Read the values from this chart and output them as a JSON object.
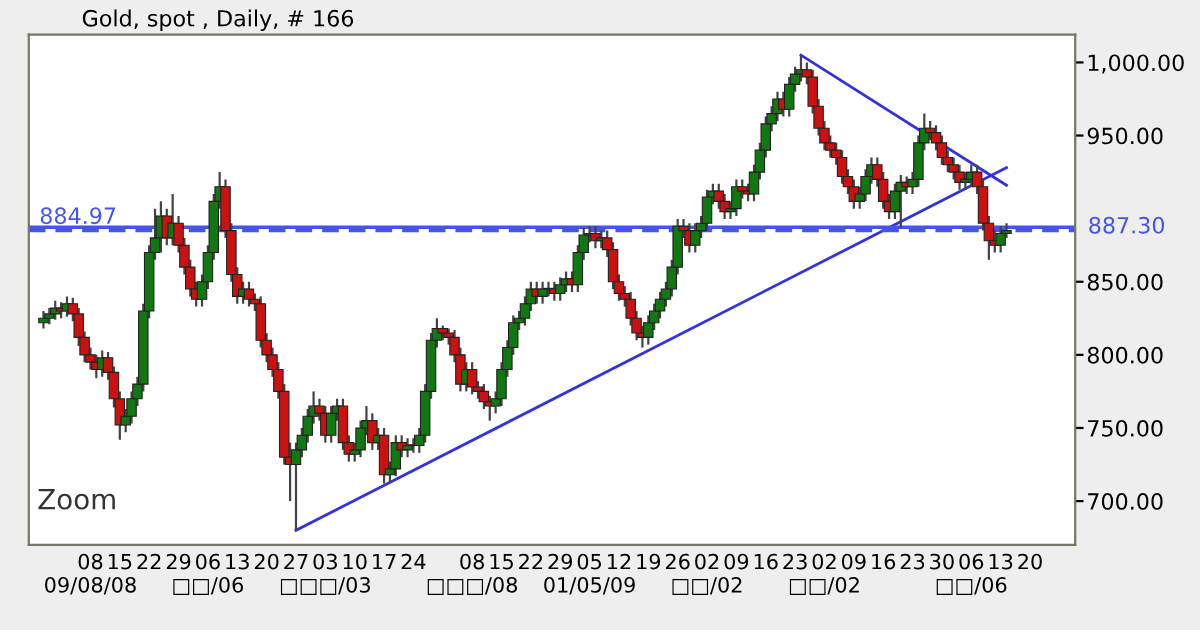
{
  "chart_data": {
    "type": "candlestick",
    "title": "Gold, spot , Daily, # 166",
    "annotations": [
      "Zoom"
    ],
    "categories": [
      null,
      null,
      null,
      null,
      null,
      null,
      null,
      null,
      "08\n09/08/08",
      null,
      null,
      null,
      null,
      "15",
      null,
      null,
      null,
      null,
      "22",
      null,
      null,
      null,
      null,
      "29",
      null,
      null,
      null,
      null,
      "06\n□□/06",
      null,
      null,
      null,
      null,
      "13",
      null,
      null,
      null,
      null,
      "20",
      null,
      null,
      null,
      null,
      "27",
      null,
      null,
      null,
      null,
      "03\n□□□/03",
      null,
      null,
      null,
      null,
      "10",
      null,
      null,
      null,
      null,
      "17",
      null,
      null,
      null,
      null,
      "24",
      null,
      null,
      null,
      null,
      null,
      null,
      null,
      null,
      null,
      "08\n□□□/08",
      null,
      null,
      null,
      null,
      "15",
      null,
      null,
      null,
      null,
      "22",
      null,
      null,
      null,
      null,
      "29",
      null,
      null,
      null,
      null,
      "05\n01/05/09",
      null,
      null,
      null,
      null,
      "12",
      null,
      null,
      null,
      null,
      "19",
      null,
      null,
      null,
      null,
      "26",
      null,
      null,
      null,
      null,
      "02\n□□/02",
      null,
      null,
      null,
      null,
      "09",
      null,
      null,
      null,
      null,
      "16",
      null,
      null,
      null,
      null,
      "23",
      null,
      null,
      null,
      null,
      "02\n□□/02",
      null,
      null,
      null,
      null,
      "09",
      null,
      null,
      null,
      null,
      "16",
      null,
      null,
      null,
      null,
      "23",
      null,
      null,
      null,
      null,
      "30",
      null,
      null,
      null,
      null,
      "06\n□□/06",
      null,
      null,
      null,
      null,
      "13",
      null,
      null,
      null,
      null,
      "20",
      null
    ],
    "ohlc": [
      [
        822,
        830,
        818,
        825
      ],
      [
        825,
        832,
        821,
        828
      ],
      [
        828,
        837,
        824,
        832
      ],
      [
        832,
        836,
        825,
        830
      ],
      [
        830,
        840,
        826,
        835
      ],
      [
        835,
        839,
        823,
        828
      ],
      [
        828,
        832,
        806,
        812
      ],
      [
        812,
        816,
        795,
        800
      ],
      [
        800,
        805,
        790,
        795
      ],
      [
        795,
        800,
        784,
        790
      ],
      [
        790,
        803,
        785,
        798
      ],
      [
        798,
        802,
        783,
        788
      ],
      [
        788,
        792,
        764,
        770
      ],
      [
        770,
        775,
        742,
        752
      ],
      [
        752,
        763,
        747,
        758
      ],
      [
        758,
        775,
        753,
        770
      ],
      [
        770,
        785,
        765,
        780
      ],
      [
        780,
        835,
        775,
        830
      ],
      [
        830,
        875,
        825,
        870
      ],
      [
        870,
        900,
        865,
        880
      ],
      [
        880,
        905,
        870,
        895
      ],
      [
        895,
        900,
        875,
        880
      ],
      [
        880,
        910,
        875,
        890
      ],
      [
        890,
        895,
        870,
        875
      ],
      [
        875,
        880,
        855,
        860
      ],
      [
        860,
        865,
        840,
        845
      ],
      [
        845,
        850,
        833,
        838
      ],
      [
        838,
        855,
        833,
        850
      ],
      [
        850,
        875,
        845,
        870
      ],
      [
        870,
        910,
        865,
        905
      ],
      [
        905,
        925,
        900,
        915
      ],
      [
        915,
        920,
        880,
        885
      ],
      [
        885,
        890,
        850,
        855
      ],
      [
        855,
        860,
        835,
        840
      ],
      [
        840,
        850,
        835,
        845
      ],
      [
        845,
        850,
        833,
        838
      ],
      [
        838,
        842,
        830,
        835
      ],
      [
        835,
        840,
        805,
        810
      ],
      [
        810,
        815,
        795,
        800
      ],
      [
        800,
        805,
        785,
        790
      ],
      [
        790,
        795,
        770,
        775
      ],
      [
        775,
        780,
        725,
        730
      ],
      [
        730,
        740,
        700,
        725
      ],
      [
        725,
        740,
        680,
        735
      ],
      [
        735,
        750,
        730,
        745
      ],
      [
        745,
        763,
        740,
        758
      ],
      [
        758,
        775,
        753,
        765
      ],
      [
        765,
        770,
        755,
        760
      ],
      [
        760,
        765,
        740,
        745
      ],
      [
        745,
        765,
        740,
        760
      ],
      [
        760,
        770,
        755,
        765
      ],
      [
        765,
        770,
        735,
        740
      ],
      [
        740,
        745,
        727,
        732
      ],
      [
        732,
        740,
        727,
        735
      ],
      [
        735,
        755,
        730,
        750
      ],
      [
        750,
        765,
        745,
        755
      ],
      [
        755,
        760,
        735,
        740
      ],
      [
        740,
        750,
        735,
        745
      ],
      [
        745,
        750,
        712,
        718
      ],
      [
        718,
        727,
        713,
        722
      ],
      [
        722,
        745,
        717,
        740
      ],
      [
        740,
        745,
        730,
        735
      ],
      [
        735,
        743,
        730,
        738
      ],
      [
        738,
        743,
        733,
        738
      ],
      [
        738,
        750,
        733,
        745
      ],
      [
        745,
        780,
        740,
        775
      ],
      [
        775,
        815,
        770,
        810
      ],
      [
        810,
        825,
        805,
        818
      ],
      [
        818,
        820,
        810,
        815
      ],
      [
        815,
        818,
        807,
        812
      ],
      [
        812,
        817,
        795,
        800
      ],
      [
        800,
        805,
        775,
        780
      ],
      [
        780,
        795,
        775,
        790
      ],
      [
        790,
        795,
        773,
        778
      ],
      [
        778,
        782,
        770,
        775
      ],
      [
        775,
        780,
        763,
        768
      ],
      [
        768,
        772,
        755,
        765
      ],
      [
        765,
        775,
        760,
        770
      ],
      [
        770,
        795,
        765,
        790
      ],
      [
        790,
        810,
        785,
        805
      ],
      [
        805,
        827,
        800,
        822
      ],
      [
        822,
        830,
        817,
        825
      ],
      [
        825,
        840,
        820,
        835
      ],
      [
        835,
        850,
        830,
        845
      ],
      [
        845,
        850,
        835,
        840
      ],
      [
        840,
        850,
        835,
        845
      ],
      [
        845,
        850,
        840,
        845
      ],
      [
        845,
        850,
        837,
        842
      ],
      [
        842,
        853,
        837,
        848
      ],
      [
        848,
        857,
        843,
        852
      ],
      [
        852,
        857,
        843,
        848
      ],
      [
        848,
        875,
        843,
        870
      ],
      [
        870,
        887,
        865,
        882
      ],
      [
        882,
        888,
        877,
        883
      ],
      [
        883,
        888,
        873,
        878
      ],
      [
        878,
        885,
        873,
        880
      ],
      [
        880,
        885,
        867,
        872
      ],
      [
        872,
        877,
        845,
        850
      ],
      [
        850,
        855,
        837,
        842
      ],
      [
        842,
        847,
        833,
        838
      ],
      [
        838,
        843,
        820,
        825
      ],
      [
        825,
        830,
        810,
        815
      ],
      [
        815,
        820,
        805,
        812
      ],
      [
        812,
        827,
        807,
        822
      ],
      [
        822,
        835,
        817,
        830
      ],
      [
        830,
        843,
        825,
        838
      ],
      [
        838,
        850,
        833,
        845
      ],
      [
        845,
        865,
        840,
        860
      ],
      [
        860,
        893,
        855,
        888
      ],
      [
        888,
        893,
        880,
        885
      ],
      [
        885,
        890,
        870,
        875
      ],
      [
        875,
        890,
        870,
        885
      ],
      [
        885,
        895,
        880,
        890
      ],
      [
        890,
        913,
        885,
        908
      ],
      [
        908,
        917,
        903,
        912
      ],
      [
        912,
        917,
        900,
        905
      ],
      [
        905,
        910,
        893,
        898
      ],
      [
        898,
        905,
        893,
        900
      ],
      [
        900,
        920,
        895,
        915
      ],
      [
        915,
        920,
        907,
        912
      ],
      [
        912,
        917,
        905,
        910
      ],
      [
        910,
        930,
        905,
        925
      ],
      [
        925,
        945,
        920,
        940
      ],
      [
        940,
        963,
        935,
        958
      ],
      [
        958,
        970,
        953,
        965
      ],
      [
        965,
        980,
        960,
        975
      ],
      [
        975,
        980,
        963,
        968
      ],
      [
        968,
        990,
        963,
        985
      ],
      [
        985,
        997,
        980,
        992
      ],
      [
        992,
        1005,
        987,
        995
      ],
      [
        995,
        1000,
        985,
        990
      ],
      [
        990,
        995,
        965,
        970
      ],
      [
        970,
        975,
        950,
        955
      ],
      [
        955,
        960,
        940,
        945
      ],
      [
        945,
        950,
        935,
        940
      ],
      [
        940,
        945,
        930,
        935
      ],
      [
        935,
        940,
        917,
        922
      ],
      [
        922,
        927,
        910,
        915
      ],
      [
        915,
        920,
        900,
        905
      ],
      [
        905,
        915,
        900,
        910
      ],
      [
        910,
        927,
        905,
        922
      ],
      [
        922,
        935,
        917,
        930
      ],
      [
        930,
        935,
        915,
        920
      ],
      [
        920,
        925,
        900,
        905
      ],
      [
        905,
        910,
        893,
        898
      ],
      [
        898,
        917,
        893,
        912
      ],
      [
        912,
        923,
        887,
        918
      ],
      [
        918,
        922,
        910,
        915
      ],
      [
        915,
        925,
        910,
        920
      ],
      [
        920,
        950,
        915,
        945
      ],
      [
        945,
        965,
        940,
        955
      ],
      [
        955,
        960,
        947,
        952
      ],
      [
        952,
        957,
        940,
        945
      ],
      [
        945,
        950,
        930,
        935
      ],
      [
        935,
        940,
        925,
        930
      ],
      [
        930,
        935,
        920,
        925
      ],
      [
        925,
        930,
        913,
        918
      ],
      [
        918,
        925,
        913,
        920
      ],
      [
        920,
        930,
        915,
        925
      ],
      [
        925,
        930,
        910,
        915
      ],
      [
        915,
        920,
        885,
        890
      ],
      [
        890,
        895,
        865,
        878
      ],
      [
        878,
        885,
        870,
        875
      ],
      [
        875,
        888,
        870,
        883
      ],
      [
        883,
        890,
        880,
        885
      ],
      null,
      null,
      null,
      null,
      null
    ],
    "colors": [
      "#117711",
      "#117711",
      "#117711",
      "#cc1111",
      "#117711",
      "#cc1111",
      "#cc1111",
      "#cc1111",
      "#cc1111",
      "#cc1111",
      "#117711",
      "#cc1111",
      "#cc1111",
      "#cc1111",
      "#117711",
      "#117711",
      "#117711",
      "#117711",
      "#117711",
      "#117711",
      "#117711",
      "#cc1111",
      "#117711",
      "#cc1111",
      "#cc1111",
      "#cc1111",
      "#cc1111",
      "#117711",
      "#117711",
      "#117711",
      "#117711",
      "#cc1111",
      "#cc1111",
      "#cc1111",
      "#117711",
      "#cc1111",
      "#cc1111",
      "#cc1111",
      "#cc1111",
      "#cc1111",
      "#cc1111",
      "#cc1111",
      "#cc1111",
      "#117711",
      "#117711",
      "#117711",
      "#117711",
      "#cc1111",
      "#cc1111",
      "#117711",
      "#117711",
      "#cc1111",
      "#cc1111",
      "#117711",
      "#117711",
      "#117711",
      "#cc1111",
      "#117711",
      "#cc1111",
      "#117711",
      "#117711",
      "#cc1111",
      "#117711",
      "#117711",
      "#117711",
      "#117711",
      "#117711",
      "#117711",
      "#cc1111",
      "#cc1111",
      "#cc1111",
      "#cc1111",
      "#117711",
      "#cc1111",
      "#cc1111",
      "#cc1111",
      "#cc1111",
      "#117711",
      "#117711",
      "#117711",
      "#117711",
      "#117711",
      "#117711",
      "#117711",
      "#cc1111",
      "#117711",
      "#117711",
      "#cc1111",
      "#117711",
      "#117711",
      "#cc1111",
      "#117711",
      "#117711",
      "#117711",
      "#cc1111",
      "#117711",
      "#cc1111",
      "#cc1111",
      "#cc1111",
      "#cc1111",
      "#cc1111",
      "#cc1111",
      "#cc1111",
      "#117711",
      "#117711",
      "#117711",
      "#117711",
      "#117711",
      "#117711",
      "#cc1111",
      "#cc1111",
      "#117711",
      "#117711",
      "#117711",
      "#117711",
      "#cc1111",
      "#cc1111",
      "#117711",
      "#117711",
      "#cc1111",
      "#cc1111",
      "#117711",
      "#117711",
      "#117711",
      "#117711",
      "#117711",
      "#cc1111",
      "#117711",
      "#117711",
      "#117711",
      "#cc1111",
      "#cc1111",
      "#cc1111",
      "#cc1111",
      "#cc1111",
      "#cc1111",
      "#cc1111",
      "#cc1111",
      "#cc1111",
      "#117711",
      "#117711",
      "#117711",
      "#cc1111",
      "#cc1111",
      "#cc1111",
      "#117711",
      "#117711",
      "#cc1111",
      "#117711",
      "#117711",
      "#117711",
      "#cc1111",
      "#cc1111",
      "#cc1111",
      "#cc1111",
      "#cc1111",
      "#cc1111",
      "#117711",
      "#117711",
      "#cc1111",
      "#cc1111",
      "#cc1111",
      "#cc1111",
      "#117711",
      "#117711",
      null,
      null,
      null,
      null,
      null
    ],
    "series": [
      {
        "type": "line",
        "color": "#3333dd",
        "values": [
          null,
          null,
          null,
          null,
          null,
          null,
          null,
          null,
          null,
          null,
          null,
          null,
          null,
          null,
          null,
          null,
          null,
          null,
          null,
          null,
          null,
          null,
          null,
          null,
          null,
          null,
          null,
          null,
          null,
          null,
          null,
          null,
          null,
          null,
          null,
          null,
          null,
          null,
          null,
          null,
          null,
          null,
          null,
          680,
          null,
          null,
          null,
          null,
          null,
          null,
          null,
          null,
          null,
          null,
          null,
          null,
          null,
          null,
          null,
          null,
          null,
          null,
          null,
          null,
          null,
          null,
          null,
          null,
          null,
          null,
          null,
          null,
          null,
          null,
          null,
          null,
          null,
          null,
          null,
          null,
          null,
          null,
          null,
          null,
          null,
          null,
          null,
          null,
          null,
          null,
          null,
          null,
          null,
          null,
          null,
          null,
          null,
          null,
          null,
          null,
          null,
          null,
          null,
          null,
          null,
          null,
          null,
          null,
          null,
          null,
          null,
          null,
          null,
          null,
          null,
          null,
          null,
          null,
          null,
          null,
          null,
          null,
          null,
          null,
          null,
          null,
          null,
          null,
          null,
          null,
          null,
          null,
          null,
          null,
          null,
          null,
          null,
          null,
          null,
          null,
          null,
          null,
          null,
          null,
          null,
          null,
          null,
          null,
          null,
          null,
          null,
          null,
          null,
          null,
          null,
          null,
          null,
          null,
          null,
          null,
          null,
          null,
          null,
          null,
          928,
          null,
          null,
          null,
          null,
          null
        ]
      },
      {
        "type": "line",
        "color": "#3333dd",
        "values": [
          null,
          null,
          null,
          null,
          null,
          null,
          null,
          null,
          null,
          null,
          null,
          null,
          null,
          null,
          null,
          null,
          null,
          null,
          null,
          null,
          null,
          null,
          null,
          null,
          null,
          null,
          null,
          null,
          null,
          null,
          null,
          null,
          null,
          null,
          null,
          null,
          null,
          null,
          null,
          null,
          null,
          null,
          null,
          null,
          null,
          null,
          null,
          null,
          null,
          null,
          null,
          null,
          null,
          null,
          null,
          null,
          null,
          null,
          null,
          null,
          null,
          null,
          null,
          null,
          null,
          null,
          null,
          null,
          null,
          null,
          null,
          null,
          null,
          null,
          null,
          null,
          null,
          null,
          null,
          null,
          null,
          null,
          null,
          null,
          null,
          null,
          null,
          null,
          null,
          null,
          null,
          null,
          null,
          null,
          null,
          null,
          null,
          null,
          null,
          null,
          null,
          null,
          null,
          null,
          null,
          null,
          null,
          null,
          null,
          null,
          null,
          null,
          null,
          null,
          null,
          null,
          null,
          null,
          null,
          null,
          null,
          null,
          null,
          null,
          null,
          null,
          null,
          null,
          null,
          1005,
          null,
          null,
          null,
          null,
          null,
          null,
          null,
          null,
          null,
          null,
          null,
          null,
          null,
          null,
          null,
          null,
          null,
          null,
          null,
          null,
          null,
          null,
          null,
          null,
          null,
          null,
          null,
          null,
          null,
          null,
          null,
          null,
          null,
          null,
          916,
          null,
          null,
          null,
          null,
          null
        ]
      }
    ],
    "ref_lines": [
      {
        "axis": "y",
        "value": 884.97,
        "label": "884.97",
        "color": "#4455ee",
        "line_style": "dashed"
      },
      {
        "axis": "y",
        "value": 887.3,
        "label": "887.30",
        "color": "#4455ee",
        "line_style": "solid"
      }
    ],
    "ylim": [
      670,
      1019
    ],
    "yticks": [
      {
        "value": 700,
        "label": "700.00"
      },
      {
        "value": 750,
        "label": "750.00"
      },
      {
        "value": 800,
        "label": "800.00"
      },
      {
        "value": 850,
        "label": "850.00"
      },
      {
        "value": 950,
        "label": "950.00"
      },
      {
        "value": 1000,
        "label": "1,000.00"
      }
    ],
    "grid": false,
    "legend": false
  }
}
